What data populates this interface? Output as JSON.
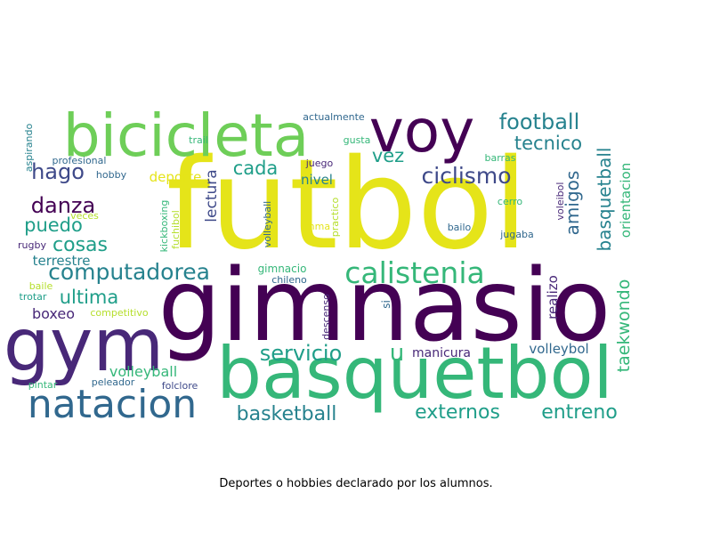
{
  "caption": "Deportes o hobbies declarado por los alumnos.",
  "palette": {
    "yellow": "#e5e419",
    "lime": "#b5de2b",
    "lightgreen": "#6ece58",
    "green": "#35b779",
    "teal": "#1f9e89",
    "cyan": "#26828e",
    "blue": "#31688e",
    "indigo": "#3e4989",
    "purple": "#482878",
    "darkpurple": "#440154"
  },
  "words": [
    {
      "text": "futbol",
      "color": "yellow"
    },
    {
      "text": "gimnasio",
      "color": "darkpurple"
    },
    {
      "text": "basquetbol",
      "color": "green"
    },
    {
      "text": "bicicleta",
      "color": "lightgreen"
    },
    {
      "text": "voy",
      "color": "darkpurple"
    },
    {
      "text": "gym",
      "color": "purple"
    },
    {
      "text": "natacion",
      "color": "blue"
    },
    {
      "text": "calistenia",
      "color": "green"
    },
    {
      "text": "computadorea",
      "color": "cyan"
    },
    {
      "text": "servicio",
      "color": "teal"
    },
    {
      "text": "externos",
      "color": "teal"
    },
    {
      "text": "entreno",
      "color": "teal"
    },
    {
      "text": "basketball",
      "color": "cyan"
    },
    {
      "text": "ciclismo",
      "color": "indigo"
    },
    {
      "text": "football",
      "color": "cyan"
    },
    {
      "text": "tecnico",
      "color": "cyan"
    },
    {
      "text": "hago",
      "color": "indigo"
    },
    {
      "text": "danza",
      "color": "darkpurple"
    },
    {
      "text": "puedo",
      "color": "teal"
    },
    {
      "text": "cosas",
      "color": "teal"
    },
    {
      "text": "cada",
      "color": "teal"
    },
    {
      "text": "vez",
      "color": "teal"
    },
    {
      "text": "ultima",
      "color": "teal"
    },
    {
      "text": "amigos",
      "color": "blue"
    },
    {
      "text": "basquetball",
      "color": "cyan"
    },
    {
      "text": "taekwondo",
      "color": "green"
    },
    {
      "text": "orientacion",
      "color": "green"
    },
    {
      "text": "deporte",
      "color": "yellow"
    },
    {
      "text": "nivel",
      "color": "cyan"
    },
    {
      "text": "lectura",
      "color": "indigo"
    },
    {
      "text": "terrestre",
      "color": "cyan"
    },
    {
      "text": "boxeo",
      "color": "purple"
    },
    {
      "text": "volleyball",
      "color": "green"
    },
    {
      "text": "volleybol",
      "color": "blue"
    },
    {
      "text": "u",
      "color": "green"
    },
    {
      "text": "manicura",
      "color": "purple"
    },
    {
      "text": "realizo",
      "color": "purple"
    },
    {
      "text": "actualmente",
      "color": "blue"
    },
    {
      "text": "gusta",
      "color": "green"
    },
    {
      "text": "trail",
      "color": "green"
    },
    {
      "text": "aspirando",
      "color": "cyan"
    },
    {
      "text": "profesional",
      "color": "blue"
    },
    {
      "text": "hobby",
      "color": "blue"
    },
    {
      "text": "veces",
      "color": "lime"
    },
    {
      "text": "rugby",
      "color": "purple"
    },
    {
      "text": "baile",
      "color": "lime"
    },
    {
      "text": "trotar",
      "color": "teal"
    },
    {
      "text": "competitivo",
      "color": "lime"
    },
    {
      "text": "pintar",
      "color": "green"
    },
    {
      "text": "peleador",
      "color": "blue"
    },
    {
      "text": "folclore",
      "color": "indigo"
    },
    {
      "text": "juego",
      "color": "purple"
    },
    {
      "text": "barras",
      "color": "green"
    },
    {
      "text": "cerro",
      "color": "green"
    },
    {
      "text": "bailo",
      "color": "blue"
    },
    {
      "text": "jugaba",
      "color": "blue"
    },
    {
      "text": "voleibol",
      "color": "purple"
    },
    {
      "text": "practico",
      "color": "lime"
    },
    {
      "text": "volleyball",
      "color": "blue"
    },
    {
      "text": "mma",
      "color": "yellow"
    },
    {
      "text": "kickboxing",
      "color": "green"
    },
    {
      "text": "fuchibol",
      "color": "lime"
    },
    {
      "text": "gimnacio",
      "color": "green"
    },
    {
      "text": "chileno",
      "color": "blue"
    },
    {
      "text": "descenso",
      "color": "purple"
    },
    {
      "text": "si",
      "color": "blue"
    }
  ]
}
